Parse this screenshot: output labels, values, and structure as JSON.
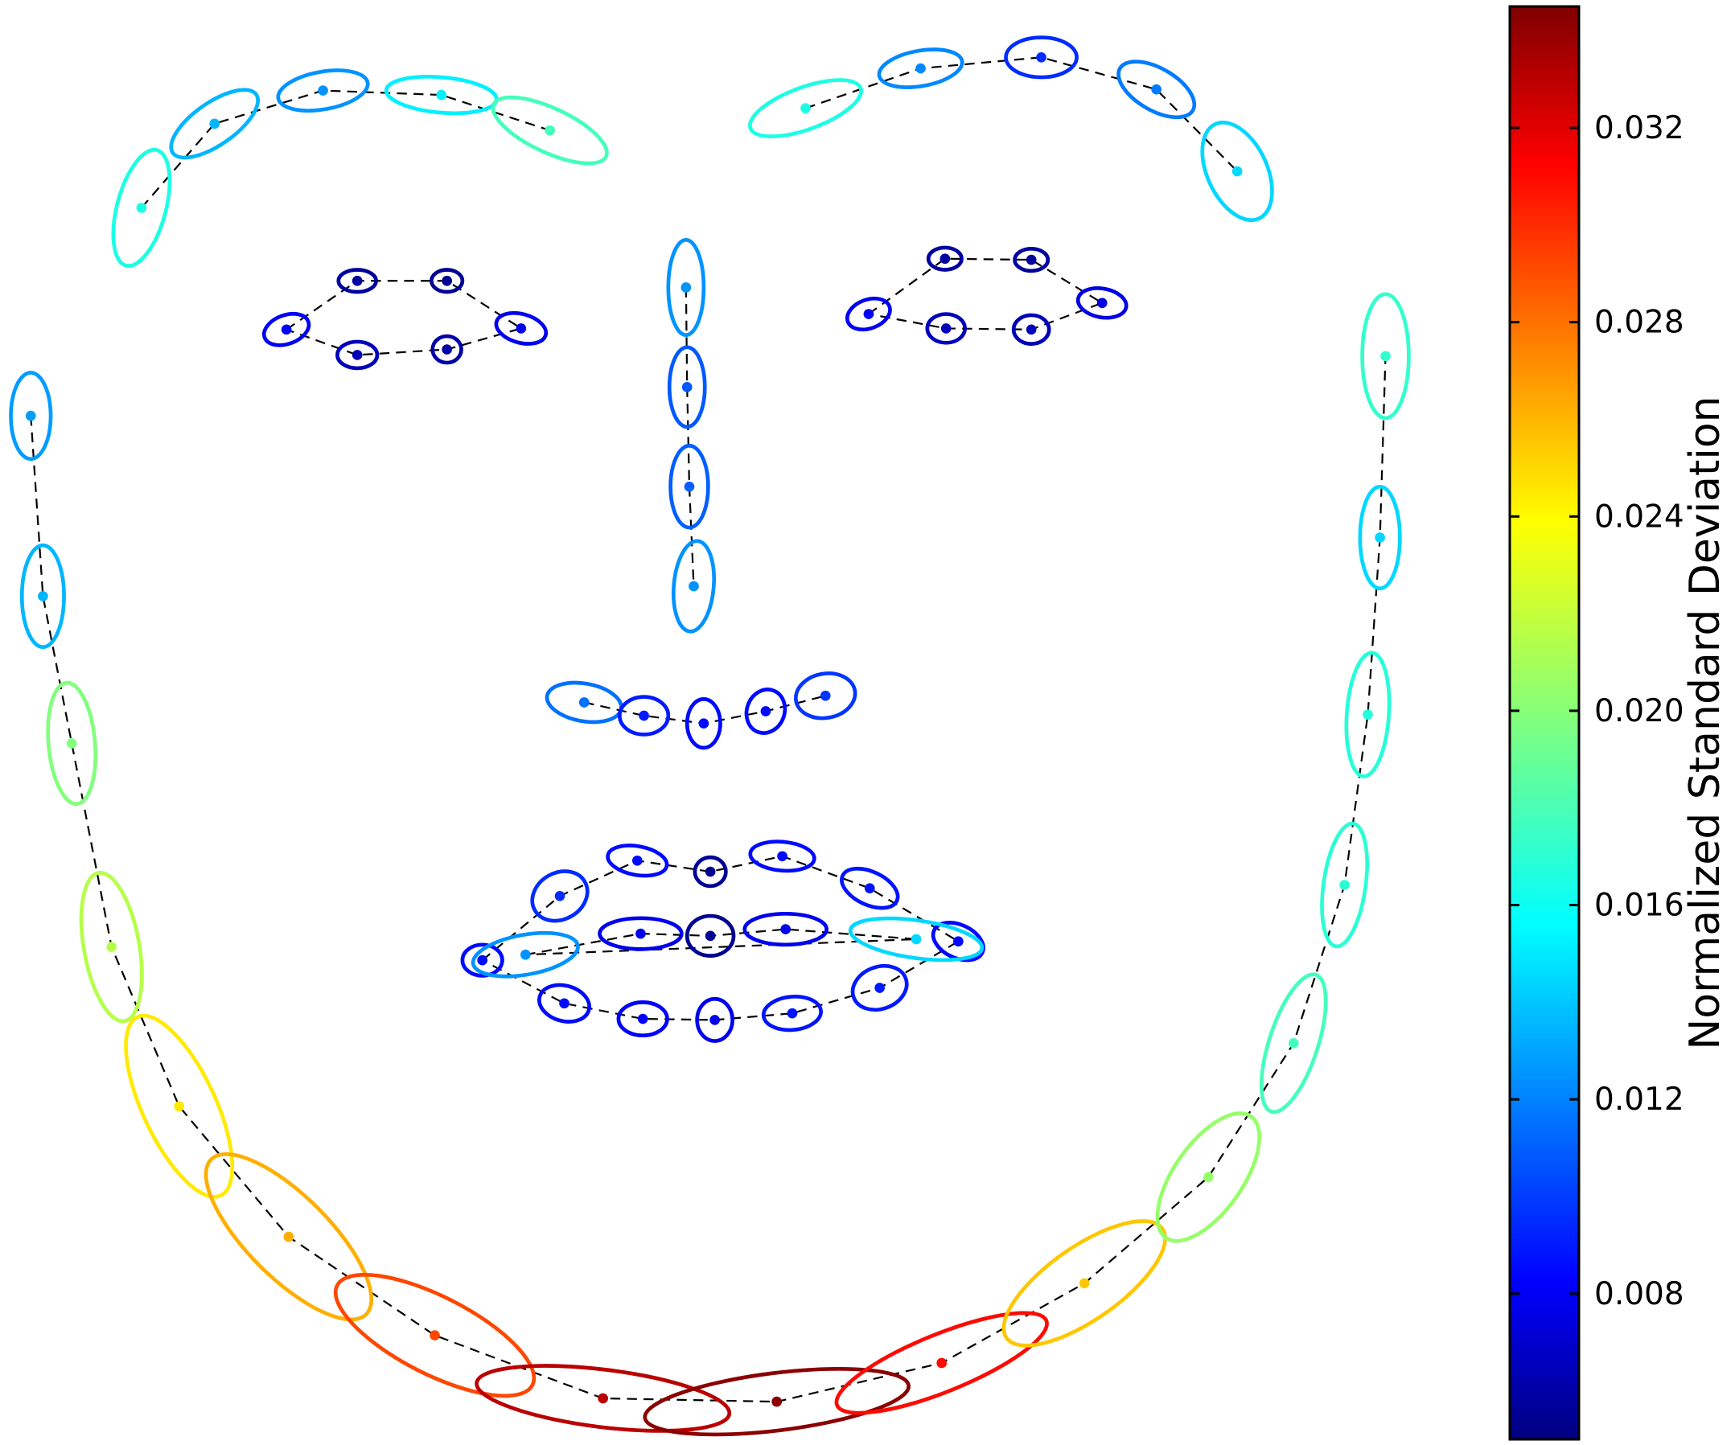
{
  "chart_data": {
    "type": "scatter",
    "title": "",
    "xlabel": "",
    "ylabel": "",
    "grid": false,
    "axes_visible": false,
    "connector_style": "dashed black",
    "marker_shape": "dot with covariance ellipse",
    "colormap": "jet",
    "colorbar": {
      "label": "Normalized Standard Deviation",
      "range": [
        0.005,
        0.0345
      ],
      "ticks": [
        0.008,
        0.012,
        0.016,
        0.02,
        0.024,
        0.028,
        0.032
      ],
      "tick_labels": [
        "0.008",
        "0.012",
        "0.016",
        "0.020",
        "0.024",
        "0.028",
        "0.032"
      ],
      "position": "right"
    },
    "series": [
      {
        "group": "left-eyebrow",
        "closed": false,
        "points": [
          {
            "x": 122,
            "y": 182,
            "rx": 22,
            "ry": 54,
            "angle": 15,
            "sd": 0.0165
          },
          {
            "x": 188,
            "y": 106,
            "rx": 46,
            "ry": 19,
            "angle": -35,
            "sd": 0.0135
          },
          {
            "x": 286,
            "y": 76,
            "rx": 41,
            "ry": 17,
            "angle": -10,
            "sd": 0.0125
          },
          {
            "x": 393,
            "y": 80,
            "rx": 50,
            "ry": 16,
            "angle": 5,
            "sd": 0.0152
          },
          {
            "x": 491,
            "y": 112,
            "rx": 56,
            "ry": 20,
            "angle": 25,
            "sd": 0.0178
          }
        ]
      },
      {
        "group": "right-eyebrow",
        "closed": false,
        "points": [
          {
            "x": 722,
            "y": 92,
            "rx": 53,
            "ry": 19,
            "angle": -20,
            "sd": 0.0165
          },
          {
            "x": 826,
            "y": 56,
            "rx": 38,
            "ry": 16,
            "angle": -10,
            "sd": 0.0122
          },
          {
            "x": 935,
            "y": 46,
            "rx": 32,
            "ry": 18,
            "angle": 0,
            "sd": 0.0095
          },
          {
            "x": 1039,
            "y": 75,
            "rx": 38,
            "ry": 19,
            "angle": 30,
            "sd": 0.0118
          },
          {
            "x": 1112,
            "y": 149,
            "rx": 27,
            "ry": 47,
            "angle": -25,
            "sd": 0.0145
          }
        ]
      },
      {
        "group": "nose-bridge",
        "closed": false,
        "points": [
          {
            "x": 614,
            "y": 254,
            "rx": 16,
            "ry": 43,
            "angle": 0,
            "sd": 0.0125
          },
          {
            "x": 615,
            "y": 344,
            "rx": 16,
            "ry": 36,
            "angle": 0,
            "sd": 0.0108
          },
          {
            "x": 617,
            "y": 434,
            "rx": 17,
            "ry": 37,
            "angle": 0,
            "sd": 0.011
          },
          {
            "x": 621,
            "y": 524,
            "rx": 18,
            "ry": 41,
            "angle": 5,
            "sd": 0.0125
          }
        ]
      },
      {
        "group": "nose-base",
        "closed": false,
        "points": [
          {
            "x": 522,
            "y": 629,
            "rx": 34,
            "ry": 17,
            "angle": 10,
            "sd": 0.0115
          },
          {
            "x": 576,
            "y": 641,
            "rx": 22,
            "ry": 17,
            "angle": 0,
            "sd": 0.009
          },
          {
            "x": 630,
            "y": 648,
            "rx": 15,
            "ry": 22,
            "angle": 0,
            "sd": 0.0085
          },
          {
            "x": 686,
            "y": 637,
            "rx": 17,
            "ry": 20,
            "angle": 20,
            "sd": 0.0085
          },
          {
            "x": 740,
            "y": 623,
            "rx": 27,
            "ry": 20,
            "angle": -10,
            "sd": 0.0098
          }
        ]
      },
      {
        "group": "left-eye",
        "closed": true,
        "points": [
          {
            "x": 253,
            "y": 292,
            "rx": 21,
            "ry": 13,
            "angle": -20,
            "sd": 0.008
          },
          {
            "x": 317,
            "y": 248,
            "rx": 17,
            "ry": 10,
            "angle": 0,
            "sd": 0.0058
          },
          {
            "x": 398,
            "y": 248,
            "rx": 14,
            "ry": 10,
            "angle": 0,
            "sd": 0.0055
          },
          {
            "x": 465,
            "y": 291,
            "rx": 23,
            "ry": 13,
            "angle": 15,
            "sd": 0.0078
          },
          {
            "x": 398,
            "y": 310,
            "rx": 13,
            "ry": 12,
            "angle": 0,
            "sd": 0.006
          },
          {
            "x": 317,
            "y": 315,
            "rx": 18,
            "ry": 12,
            "angle": 0,
            "sd": 0.0065
          }
        ]
      },
      {
        "group": "right-eye",
        "closed": true,
        "points": [
          {
            "x": 779,
            "y": 278,
            "rx": 20,
            "ry": 13,
            "angle": -20,
            "sd": 0.008
          },
          {
            "x": 848,
            "y": 228,
            "rx": 15,
            "ry": 10,
            "angle": 0,
            "sd": 0.0058
          },
          {
            "x": 926,
            "y": 229,
            "rx": 15,
            "ry": 10,
            "angle": 0,
            "sd": 0.0058
          },
          {
            "x": 990,
            "y": 268,
            "rx": 22,
            "ry": 13,
            "angle": 10,
            "sd": 0.0075
          },
          {
            "x": 926,
            "y": 292,
            "rx": 16,
            "ry": 13,
            "angle": 0,
            "sd": 0.0065
          },
          {
            "x": 849,
            "y": 291,
            "rx": 17,
            "ry": 13,
            "angle": 0,
            "sd": 0.0065
          }
        ]
      },
      {
        "group": "outer-lip",
        "closed": true,
        "points": [
          {
            "x": 430,
            "y": 862,
            "rx": 18,
            "ry": 14,
            "angle": 0,
            "sd": 0.0085
          },
          {
            "x": 500,
            "y": 804,
            "rx": 26,
            "ry": 21,
            "angle": -30,
            "sd": 0.0095
          },
          {
            "x": 570,
            "y": 772,
            "rx": 27,
            "ry": 13,
            "angle": 10,
            "sd": 0.0085
          },
          {
            "x": 636,
            "y": 782,
            "rx": 14,
            "ry": 13,
            "angle": 0,
            "sd": 0.0055
          },
          {
            "x": 701,
            "y": 768,
            "rx": 29,
            "ry": 13,
            "angle": 5,
            "sd": 0.0085
          },
          {
            "x": 780,
            "y": 797,
            "rx": 27,
            "ry": 15,
            "angle": 25,
            "sd": 0.0088
          },
          {
            "x": 860,
            "y": 845,
            "rx": 24,
            "ry": 15,
            "angle": 25,
            "sd": 0.0085
          },
          {
            "x": 789,
            "y": 887,
            "rx": 25,
            "ry": 19,
            "angle": -20,
            "sd": 0.009
          },
          {
            "x": 710,
            "y": 910,
            "rx": 26,
            "ry": 15,
            "angle": -5,
            "sd": 0.0088
          },
          {
            "x": 640,
            "y": 916,
            "rx": 16,
            "ry": 19,
            "angle": 0,
            "sd": 0.0078
          },
          {
            "x": 575,
            "y": 915,
            "rx": 22,
            "ry": 15,
            "angle": 0,
            "sd": 0.0082
          },
          {
            "x": 504,
            "y": 901,
            "rx": 23,
            "ry": 16,
            "angle": 15,
            "sd": 0.0085
          }
        ]
      },
      {
        "group": "inner-lip",
        "closed": true,
        "points": [
          {
            "x": 469,
            "y": 857,
            "rx": 48,
            "ry": 18,
            "angle": -10,
            "sd": 0.0125
          },
          {
            "x": 573,
            "y": 838,
            "rx": 37,
            "ry": 14,
            "angle": 0,
            "sd": 0.0078
          },
          {
            "x": 636,
            "y": 840,
            "rx": 21,
            "ry": 18,
            "angle": 0,
            "sd": 0.0055
          },
          {
            "x": 704,
            "y": 834,
            "rx": 37,
            "ry": 14,
            "angle": 0,
            "sd": 0.0078
          },
          {
            "x": 822,
            "y": 843,
            "rx": 60,
            "ry": 17,
            "angle": 8,
            "sd": 0.0145
          }
        ]
      },
      {
        "group": "jaw",
        "closed": false,
        "points": [
          {
            "x": 22,
            "y": 370,
            "rx": 18,
            "ry": 39,
            "angle": 0,
            "sd": 0.0128
          },
          {
            "x": 33,
            "y": 533,
            "rx": 19,
            "ry": 46,
            "angle": 0,
            "sd": 0.0135
          },
          {
            "x": 59,
            "y": 666,
            "rx": 21,
            "ry": 55,
            "angle": -5,
            "sd": 0.0198
          },
          {
            "x": 95,
            "y": 850,
            "rx": 25,
            "ry": 68,
            "angle": -10,
            "sd": 0.0215
          },
          {
            "x": 156,
            "y": 994,
            "rx": 33,
            "ry": 89,
            "angle": -25,
            "sd": 0.0245
          },
          {
            "x": 255,
            "y": 1112,
            "rx": 37,
            "ry": 99,
            "angle": -45,
            "sd": 0.0262
          },
          {
            "x": 387,
            "y": 1201,
            "rx": 35,
            "ry": 99,
            "angle": -63,
            "sd": 0.0292
          },
          {
            "x": 539,
            "y": 1258,
            "rx": 26,
            "ry": 115,
            "angle": -83,
            "sd": 0.033
          },
          {
            "x": 696,
            "y": 1261,
            "rx": 26,
            "ry": 120,
            "angle": 83,
            "sd": 0.0342
          },
          {
            "x": 845,
            "y": 1226,
            "rx": 26,
            "ry": 102,
            "angle": 68,
            "sd": 0.031
          },
          {
            "x": 974,
            "y": 1154,
            "rx": 33,
            "ry": 86,
            "angle": 55,
            "sd": 0.0255
          },
          {
            "x": 1086,
            "y": 1058,
            "rx": 31,
            "ry": 67,
            "angle": 35,
            "sd": 0.0205
          },
          {
            "x": 1163,
            "y": 937,
            "rx": 22,
            "ry": 65,
            "angle": 18,
            "sd": 0.0178
          },
          {
            "x": 1209,
            "y": 794,
            "rx": 19,
            "ry": 56,
            "angle": 8,
            "sd": 0.017
          },
          {
            "x": 1230,
            "y": 640,
            "rx": 19,
            "ry": 56,
            "angle": 4,
            "sd": 0.0168
          },
          {
            "x": 1241,
            "y": 480,
            "rx": 18,
            "ry": 46,
            "angle": 0,
            "sd": 0.0145
          },
          {
            "x": 1246,
            "y": 316,
            "rx": 21,
            "ry": 56,
            "angle": 0,
            "sd": 0.0172
          }
        ]
      }
    ]
  }
}
